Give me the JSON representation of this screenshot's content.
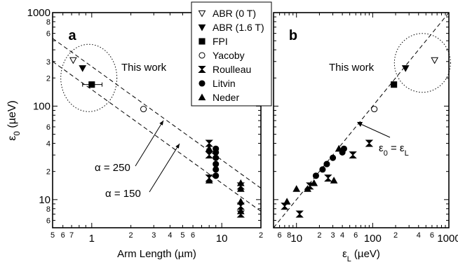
{
  "chart_data": [
    {
      "type": "scatter",
      "panel_label": "a",
      "xlabel": "Arm Length (µm)",
      "ylabel": "ε₀ (µeV)",
      "x_scale": "log",
      "y_scale": "log",
      "xlim": [
        0.5,
        20
      ],
      "ylim": [
        5,
        1000
      ],
      "x_tick_labels": [
        {
          "v": 0.5,
          "t": "5"
        },
        {
          "v": 0.6,
          "t": "6"
        },
        {
          "v": 0.7,
          "t": "7"
        },
        {
          "v": 1,
          "t": "1"
        },
        {
          "v": 2,
          "t": "2"
        },
        {
          "v": 3,
          "t": "3"
        },
        {
          "v": 4,
          "t": "4"
        },
        {
          "v": 5,
          "t": "5"
        },
        {
          "v": 6,
          "t": "6"
        },
        {
          "v": 10,
          "t": "10"
        },
        {
          "v": 20,
          "t": "2"
        }
      ],
      "y_tick_labels": [
        {
          "v": 6,
          "t": "6"
        },
        {
          "v": 8,
          "t": "8"
        },
        {
          "v": 10,
          "t": "10"
        },
        {
          "v": 20,
          "t": "2"
        },
        {
          "v": 40,
          "t": "4"
        },
        {
          "v": 60,
          "t": "6"
        },
        {
          "v": 100,
          "t": "100"
        },
        {
          "v": 200,
          "t": "2"
        },
        {
          "v": 300,
          "t": "3"
        },
        {
          "v": 600,
          "t": "6"
        },
        {
          "v": 800,
          "t": "8"
        },
        {
          "v": 1000,
          "t": "1000"
        }
      ],
      "series": [
        {
          "name": "ABR (0 T)",
          "marker": "triangle-down-open",
          "points": [
            {
              "x": 0.72,
              "y": 310
            }
          ]
        },
        {
          "name": "ABR (1.6 T)",
          "marker": "triangle-down-filled",
          "points": [
            {
              "x": 0.85,
              "y": 255
            }
          ]
        },
        {
          "name": "FPI",
          "marker": "square-filled",
          "points": [
            {
              "x": 1.0,
              "y": 170,
              "xerr": [
                0.85,
                1.2
              ]
            }
          ]
        },
        {
          "name": "Yacoby",
          "marker": "circle-open",
          "points": [
            {
              "x": 2.5,
              "y": 93
            }
          ]
        },
        {
          "name": "Roulleau",
          "marker": "bowtie-filled",
          "points": [
            {
              "x": 8,
              "y": 40
            },
            {
              "x": 8,
              "y": 30
            },
            {
              "x": 8,
              "y": 17
            },
            {
              "x": 14,
              "y": 14
            },
            {
              "x": 14,
              "y": 8.5
            },
            {
              "x": 14,
              "y": 7
            }
          ]
        },
        {
          "name": "Litvin",
          "marker": "circle-filled",
          "points": [
            {
              "x": 9,
              "y": 35
            },
            {
              "x": 9,
              "y": 32
            },
            {
              "x": 9,
              "y": 28
            },
            {
              "x": 9,
              "y": 24
            },
            {
              "x": 9,
              "y": 21
            },
            {
              "x": 9,
              "y": 18
            }
          ]
        },
        {
          "name": "Neder",
          "marker": "triangle-up-filled",
          "points": [
            {
              "x": 8,
              "y": 35
            },
            {
              "x": 8,
              "y": 16
            },
            {
              "x": 14,
              "y": 15
            },
            {
              "x": 14,
              "y": 13
            },
            {
              "x": 14,
              "y": 9.5
            },
            {
              "x": 14,
              "y": 7.5
            }
          ]
        }
      ],
      "fit_lines": [
        {
          "label": "α = 250",
          "points": [
            [
              0.5,
              530
            ],
            [
              20,
              13.25
            ]
          ]
        },
        {
          "label": "α = 150",
          "points": [
            [
              0.5,
              300
            ],
            [
              20,
              7.5
            ]
          ]
        }
      ],
      "annotation": "This work"
    },
    {
      "type": "scatter",
      "panel_label": "b",
      "xlabel": "εL (µeV)",
      "ylabel": "",
      "x_scale": "log",
      "y_scale": "log",
      "xlim": [
        5,
        1000
      ],
      "ylim": [
        5,
        1000
      ],
      "x_tick_labels": [
        {
          "v": 6,
          "t": "6"
        },
        {
          "v": 8,
          "t": "8"
        },
        {
          "v": 10,
          "t": "10"
        },
        {
          "v": 20,
          "t": "2"
        },
        {
          "v": 30,
          "t": "3"
        },
        {
          "v": 40,
          "t": "4"
        },
        {
          "v": 60,
          "t": "6"
        },
        {
          "v": 100,
          "t": "100"
        },
        {
          "v": 200,
          "t": "2"
        },
        {
          "v": 400,
          "t": "4"
        },
        {
          "v": 600,
          "t": "6"
        },
        {
          "v": 1000,
          "t": "1000"
        }
      ],
      "series": [
        {
          "name": "ABR (0 T)",
          "marker": "triangle-down-open",
          "points": [
            {
              "x": 650,
              "y": 310
            }
          ]
        },
        {
          "name": "ABR (1.6 T)",
          "marker": "triangle-down-filled",
          "points": [
            {
              "x": 270,
              "y": 255
            }
          ]
        },
        {
          "name": "FPI",
          "marker": "square-filled",
          "points": [
            {
              "x": 190,
              "y": 170
            }
          ]
        },
        {
          "name": "Yacoby",
          "marker": "circle-open",
          "points": [
            {
              "x": 105,
              "y": 93
            }
          ]
        },
        {
          "name": "Roulleau",
          "marker": "bowtie-filled",
          "points": [
            {
              "x": 90,
              "y": 40
            },
            {
              "x": 55,
              "y": 30
            },
            {
              "x": 26,
              "y": 17
            },
            {
              "x": 11,
              "y": 7
            },
            {
              "x": 7,
              "y": 8.5
            },
            {
              "x": 15,
              "y": 14
            }
          ]
        },
        {
          "name": "Litvin",
          "marker": "circle-filled",
          "points": [
            {
              "x": 42,
              "y": 35
            },
            {
              "x": 40,
              "y": 32
            },
            {
              "x": 30,
              "y": 28
            },
            {
              "x": 25,
              "y": 24
            },
            {
              "x": 22,
              "y": 21
            },
            {
              "x": 18,
              "y": 18
            }
          ]
        },
        {
          "name": "Neder",
          "marker": "triangle-up-filled",
          "points": [
            {
              "x": 36,
              "y": 35
            },
            {
              "x": 31,
              "y": 16
            },
            {
              "x": 17,
              "y": 15
            },
            {
              "x": 14,
              "y": 13
            },
            {
              "x": 10,
              "y": 13
            },
            {
              "x": 7.5,
              "y": 9.5
            }
          ]
        }
      ],
      "fit_lines": [
        {
          "label": "ε₀ = εL",
          "points": [
            [
              5,
              5
            ],
            [
              1000,
              1000
            ]
          ]
        }
      ],
      "annotation": "This work"
    }
  ],
  "legend": {
    "placement": "top-center",
    "entries": [
      {
        "label": "ABR (0 T)",
        "marker": "triangle-down-open"
      },
      {
        "label": "ABR (1.6 T)",
        "marker": "triangle-down-filled"
      },
      {
        "label": "FPI",
        "marker": "square-filled"
      },
      {
        "label": "Yacoby",
        "marker": "circle-open"
      },
      {
        "label": "Roulleau",
        "marker": "bowtie-filled"
      },
      {
        "label": "Litvin",
        "marker": "circle-filled"
      },
      {
        "label": "Neder",
        "marker": "triangle-up-filled"
      }
    ]
  },
  "colors": {
    "ink": "#000000",
    "background": "#ffffff"
  }
}
